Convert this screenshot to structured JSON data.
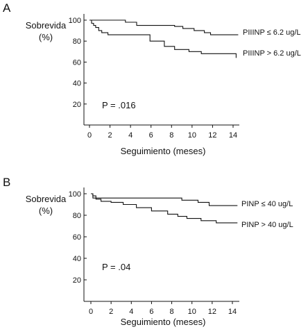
{
  "chart_data": [
    {
      "type": "line",
      "panel": "A",
      "ylabel_line1": "Sobrevida",
      "ylabel_line2": "(%)",
      "xlabel": "Seguimiento (meses)",
      "xticks": [
        0,
        2,
        4,
        6,
        8,
        10,
        12,
        14
      ],
      "yticks": [
        20,
        40,
        60,
        80,
        100
      ],
      "xlim": [
        0,
        14.5
      ],
      "ylim": [
        0,
        100
      ],
      "annotation": "P = .016",
      "series": [
        {
          "name": "PIIINP ≤ 6.2 ug/L",
          "x": [
            0,
            2.2,
            3.5,
            4.6,
            6.2,
            8.3,
            9.1,
            10.2,
            11.2,
            11.8,
            14.5
          ],
          "y": [
            100,
            100,
            98,
            95,
            95,
            94,
            92,
            90,
            88,
            86,
            86
          ]
        },
        {
          "name": "PIIINP > 6.2 ug/L",
          "x": [
            0,
            0.2,
            0.4,
            0.6,
            0.9,
            1.2,
            1.8,
            2.6,
            5.9,
            7.3,
            8.3,
            9.7,
            10.9,
            14.0,
            14.3
          ],
          "y": [
            100,
            97,
            95,
            93,
            90,
            88,
            86,
            86,
            80,
            75,
            72,
            70,
            68,
            68,
            64
          ]
        }
      ]
    },
    {
      "type": "line",
      "panel": "B",
      "ylabel_line1": "Sobrevida",
      "ylabel_line2": "(%)",
      "xlabel": "Seguimiento (meses)",
      "xticks": [
        0,
        2,
        4,
        6,
        8,
        10,
        12,
        14
      ],
      "yticks": [
        20,
        40,
        60,
        80,
        100
      ],
      "xlim": [
        0,
        14.5
      ],
      "ylim": [
        0,
        100
      ],
      "annotation": "P = .04",
      "series": [
        {
          "name": "PINP ≤ 40 ug/L",
          "x": [
            0,
            0.2,
            0.5,
            2.0,
            7.8,
            9.0,
            10.6,
            11.7,
            14.5
          ],
          "y": [
            100,
            98,
            96,
            96,
            96,
            94,
            92,
            89,
            89
          ]
        },
        {
          "name": "PINP > 40 ug/L",
          "x": [
            0,
            0.2,
            0.5,
            1.0,
            2.0,
            3.2,
            4.5,
            6.0,
            7.6,
            8.6,
            9.5,
            10.9,
            12.4,
            14.5
          ],
          "y": [
            100,
            96,
            95,
            93,
            92,
            90,
            87,
            84,
            81,
            79,
            77,
            75,
            73,
            73
          ]
        }
      ]
    }
  ],
  "figure": {
    "panel_a_letter": "A",
    "panel_b_letter": "B"
  }
}
